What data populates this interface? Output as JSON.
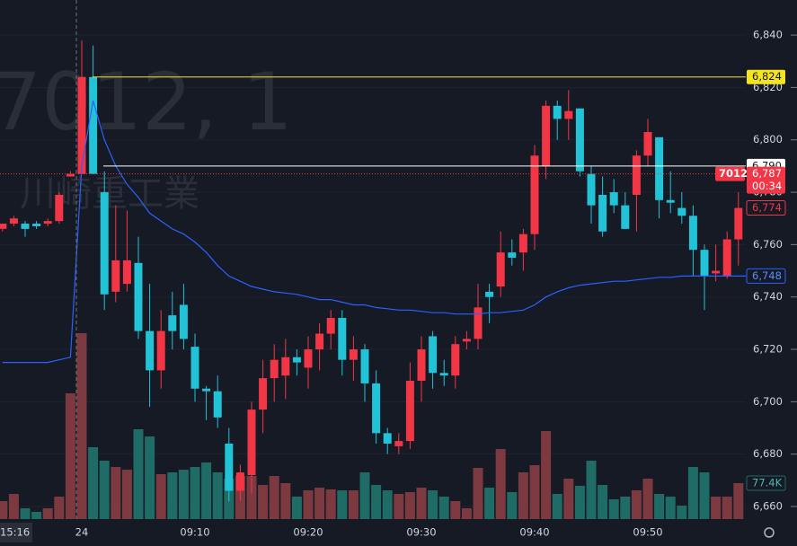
{
  "chart_data": {
    "type": "candlestick",
    "watermark": "7012, 1",
    "watermark_name": "川崎重工業",
    "categories": [
      null,
      null,
      null,
      null,
      null,
      null,
      null,
      "24",
      null,
      null,
      null,
      null,
      null,
      null,
      null,
      null,
      null,
      "09:10",
      null,
      null,
      null,
      null,
      null,
      null,
      null,
      null,
      null,
      "09:20",
      null,
      null,
      null,
      null,
      null,
      null,
      null,
      null,
      null,
      "09:30",
      null,
      null,
      null,
      null,
      null,
      null,
      null,
      null,
      null,
      "09:40",
      null,
      null,
      null,
      null,
      null,
      null,
      null,
      null,
      null,
      "09:50",
      null,
      null,
      null,
      null,
      null,
      null,
      null,
      null
    ],
    "open": [
      6766,
      6768,
      6768,
      6768,
      6768,
      6769,
      6786,
      6787,
      6824,
      6780,
      6742,
      6745,
      6753,
      6727,
      6712,
      6733,
      6737,
      6721,
      6705,
      6704,
      6684,
      6666,
      6672,
      6697,
      6709,
      6710,
      6717,
      6713,
      6720,
      6726,
      6732,
      6716,
      6720,
      6707,
      6688,
      6683,
      6685,
      6708,
      6725,
      6711,
      6710,
      6723,
      6724,
      6742,
      6744,
      6757,
      6757,
      6764,
      6790,
      6813,
      6808,
      6812,
      6787,
      6779,
      6780,
      6775,
      6779,
      6794,
      6801,
      6777,
      6774,
      6771,
      6758,
      6749,
      6748,
      6762
    ],
    "high": [
      6768,
      6771,
      6769,
      6769,
      6770,
      6780,
      6788,
      6838,
      6836,
      6788,
      6775,
      6773,
      6763,
      6745,
      6735,
      6742,
      6745,
      6726,
      6706,
      6710,
      6690,
      6676,
      6700,
      6716,
      6722,
      6724,
      6720,
      6725,
      6730,
      6735,
      6735,
      6725,
      6722,
      6712,
      6690,
      6688,
      6715,
      6725,
      6727,
      6716,
      6725,
      6727,
      6745,
      6745,
      6765,
      6762,
      6766,
      6798,
      6815,
      6815,
      6819,
      6812,
      6790,
      6786,
      6785,
      6780,
      6796,
      6808,
      6801,
      6788,
      6780,
      6775,
      6760,
      6760,
      6765,
      6780
    ],
    "low": [
      6765,
      6767,
      6763,
      6766,
      6767,
      6768,
      6786,
      6787,
      6787,
      6735,
      6738,
      6742,
      6724,
      6698,
      6705,
      6720,
      6720,
      6700,
      6693,
      6690,
      6662,
      6662,
      6665,
      6688,
      6700,
      6701,
      6710,
      6705,
      6712,
      6720,
      6710,
      6708,
      6700,
      6684,
      6680,
      6680,
      6682,
      6700,
      6705,
      6706,
      6705,
      6720,
      6720,
      6730,
      6740,
      6752,
      6750,
      6758,
      6785,
      6800,
      6800,
      6786,
      6768,
      6763,
      6772,
      6766,
      6765,
      6790,
      6770,
      6772,
      6768,
      6748,
      6735,
      6746,
      6747,
      6752
    ],
    "close": [
      6768,
      6770,
      6766,
      6767,
      6769,
      6779,
      6787,
      6824,
      6787,
      6741,
      6754,
      6754,
      6727,
      6712,
      6727,
      6727,
      6724,
      6705,
      6704,
      6694,
      6666,
      6673,
      6697,
      6709,
      6716,
      6717,
      6715,
      6720,
      6726,
      6732,
      6716,
      6720,
      6707,
      6688,
      6684,
      6685,
      6708,
      6720,
      6711,
      6710,
      6722,
      6724,
      6736,
      6740,
      6757,
      6755,
      6764,
      6794,
      6813,
      6808,
      6811,
      6788,
      6775,
      6765,
      6775,
      6766,
      6794,
      6803,
      6777,
      6776,
      6771,
      6758,
      6748,
      6750,
      6762,
      6774
    ],
    "volume": [
      38700,
      54200,
      23200,
      15500,
      23200,
      48400,
      270900,
      400500,
      154800,
      125800,
      112200,
      106400,
      193500,
      178000,
      96800,
      100600,
      106400,
      112200,
      121900,
      100600,
      87100,
      92900,
      92900,
      73500,
      92900,
      77400,
      48400,
      61900,
      67700,
      63900,
      61900,
      61900,
      100600,
      73500,
      61900,
      54200,
      58100,
      67700,
      61900,
      48400,
      38700,
      23200,
      110300,
      67700,
      150900,
      58100,
      100600,
      116100,
      189600,
      54200,
      87100,
      71600,
      125800,
      73500,
      42600,
      48400,
      61900,
      87100,
      54200,
      48400,
      29000,
      112200,
      100600,
      48400,
      48400,
      77400
    ],
    "ma": [
      6715,
      6715,
      6715,
      6715,
      6715,
      6716,
      6717,
      6790,
      6815,
      6800,
      6790,
      6783,
      6778,
      6772,
      6769,
      6766,
      6764,
      6761,
      6757,
      6752,
      6748,
      6746,
      6744,
      6743,
      6742,
      6741.5,
      6741,
      6740,
      6739,
      6739,
      6738,
      6737,
      6737,
      6736,
      6735.5,
      6735,
      6735,
      6734.5,
      6734,
      6734,
      6733.5,
      6733.5,
      6733.5,
      6734,
      6734,
      6734.5,
      6735,
      6737,
      6740,
      6742,
      6743.5,
      6744.5,
      6745,
      6745.5,
      6746,
      6746,
      6746.5,
      6747,
      6747.5,
      6747.5,
      6748,
      6748,
      6748,
      6748,
      6748,
      6748
    ],
    "ma_color": "#2962ff",
    "ma_label": "6,748",
    "up_color": "#f23645",
    "down_color": "#22c3d6",
    "volume_up_color": "#7c3a40",
    "volume_down_color": "#1f6b66",
    "volume_label": "77.4K",
    "last_close_label": "6,774",
    "price_lines": [
      {
        "value": 6824,
        "label": "6,824",
        "color": "#f7e51b"
      },
      {
        "value": 6790,
        "label": "6,790",
        "color": "#ffffff"
      }
    ],
    "current": {
      "symbol": "7012",
      "value": 6787,
      "label": "6,787",
      "countdown": "00:34",
      "color": "#f23645"
    },
    "crosshair_label": "15:16",
    "ylim": [
      6655.2,
      6853.4
    ],
    "yticks": [
      {
        "value": 6660,
        "label": "6,660"
      },
      {
        "value": 6680,
        "label": "6,680"
      },
      {
        "value": 6700,
        "label": "6,700"
      },
      {
        "value": 6720,
        "label": "6,720"
      },
      {
        "value": 6740,
        "label": "6,740"
      },
      {
        "value": 6760,
        "label": "6,760"
      },
      {
        "value": 6780,
        "label": "6,780"
      },
      {
        "value": 6800,
        "label": "6,800"
      },
      {
        "value": 6820,
        "label": "6,820"
      },
      {
        "value": 6840,
        "label": "6,840"
      }
    ],
    "grid": true
  }
}
